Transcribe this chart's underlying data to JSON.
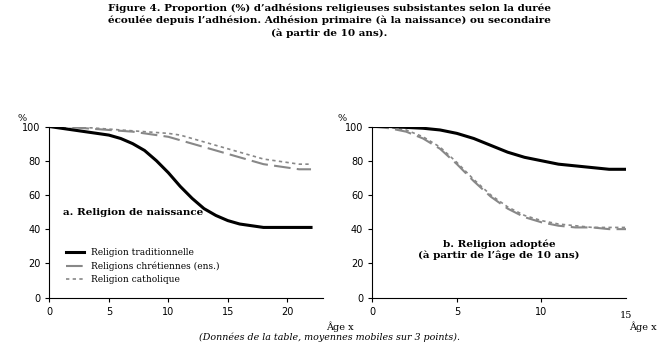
{
  "title_lines": [
    "Figure 4. Proportion (%) d’adhésions religieuses subsistantes selon la durée",
    "écoulée depuis l’adhésion. Adhésion primaire (à la naissance) ou secondaire",
    "(à partir de 10 ans)."
  ],
  "footnote": "(Données de la table, moyennes mobiles sur 3 points).",
  "panel_a": {
    "label": "a. Religion de naissance",
    "xlabel": "Âge x",
    "ylabel": "%",
    "xlim": [
      0,
      23
    ],
    "ylim": [
      0,
      100
    ],
    "xticks": [
      0,
      5,
      10,
      15,
      20
    ],
    "yticks": [
      0,
      20,
      40,
      60,
      80,
      100
    ],
    "trad_x": [
      0,
      1,
      2,
      3,
      4,
      5,
      6,
      7,
      8,
      9,
      10,
      11,
      12,
      13,
      14,
      15,
      16,
      17,
      18,
      19,
      20,
      21,
      22
    ],
    "trad_y": [
      100,
      99,
      98,
      97,
      96,
      95,
      93,
      90,
      86,
      80,
      73,
      65,
      58,
      52,
      48,
      45,
      43,
      42,
      41,
      41,
      41,
      41,
      41
    ],
    "chret_x": [
      0,
      1,
      2,
      3,
      4,
      5,
      6,
      7,
      8,
      9,
      10,
      11,
      12,
      13,
      14,
      15,
      16,
      17,
      18,
      19,
      20,
      21,
      22
    ],
    "chret_y": [
      100,
      100,
      99.5,
      99,
      98.5,
      98,
      97.5,
      97,
      96,
      95,
      94,
      92,
      90,
      88,
      86,
      84,
      82,
      80,
      78,
      77,
      76,
      75,
      75
    ],
    "catho_x": [
      0,
      1,
      2,
      3,
      4,
      5,
      6,
      7,
      8,
      9,
      10,
      11,
      12,
      13,
      14,
      15,
      16,
      17,
      18,
      19,
      20,
      21,
      22
    ],
    "catho_y": [
      100,
      100,
      100,
      99.5,
      99,
      98.5,
      98,
      97.5,
      97,
      96.5,
      96,
      95,
      93,
      91,
      89,
      87,
      85,
      83,
      81,
      80,
      79,
      78,
      78
    ]
  },
  "panel_b": {
    "label": "b. Religion adoptée\n(à partir de l’âge de 10 ans)",
    "xlabel": "Âge x",
    "ylabel": "%",
    "xlim": [
      0,
      15
    ],
    "ylim": [
      0,
      100
    ],
    "xticks": [
      0,
      5,
      10
    ],
    "xtick_extra_label": "15",
    "yticks": [
      0,
      20,
      40,
      60,
      80,
      100
    ],
    "trad_x": [
      0,
      1,
      2,
      3,
      4,
      5,
      6,
      7,
      8,
      9,
      10,
      11,
      12,
      13,
      14,
      15
    ],
    "trad_y": [
      100,
      100,
      99.5,
      99,
      98,
      96,
      93,
      89,
      85,
      82,
      80,
      78,
      77,
      76,
      75,
      75
    ],
    "chret_x": [
      0,
      1,
      2,
      3,
      4,
      5,
      6,
      7,
      8,
      9,
      10,
      11,
      12,
      13,
      14,
      15
    ],
    "chret_y": [
      100,
      99,
      97,
      93,
      87,
      78,
      68,
      59,
      52,
      47,
      44,
      42,
      41,
      41,
      40,
      40
    ],
    "catho_x": [
      0,
      1,
      2,
      3,
      4,
      5,
      6,
      7,
      8,
      9,
      10,
      11,
      12,
      13,
      14,
      15
    ],
    "catho_y": [
      100,
      99.5,
      98,
      94,
      88,
      79,
      69,
      60,
      53,
      48,
      45,
      43,
      42,
      41,
      41,
      41
    ]
  },
  "legend": {
    "trad_label": "Religion traditionnelle",
    "chret_label": "Religions chrétiennes (ens.)",
    "catho_label": "Religion catholique"
  },
  "colors": {
    "trad": "#000000",
    "chret": "#888888",
    "catho": "#888888"
  },
  "line_widths": {
    "trad": 2.2,
    "chret": 1.5,
    "catho": 1.2
  }
}
